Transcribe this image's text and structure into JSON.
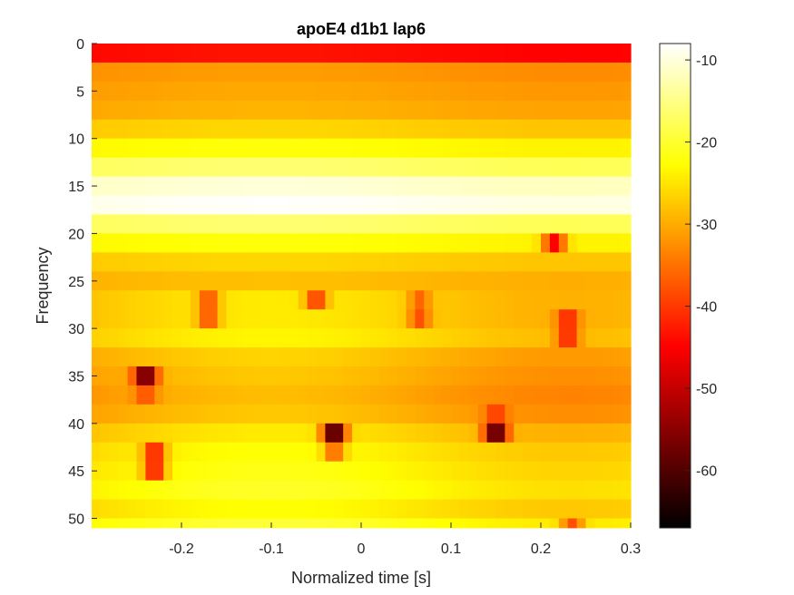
{
  "chart_data": {
    "type": "heatmap",
    "title": "apoE4 d1b1 lap6",
    "xlabel": "Normalized time [s]",
    "ylabel": "Frequency",
    "xlim": [
      -0.3,
      0.3
    ],
    "ylim": [
      0,
      51
    ],
    "y_reversed": true,
    "xticks": [
      -0.2,
      -0.1,
      0,
      0.1,
      0.2,
      0.3
    ],
    "xtick_labels": [
      "-0.2",
      "-0.1",
      "0",
      "0.1",
      "0.2",
      "0.3"
    ],
    "yticks": [
      0,
      5,
      10,
      15,
      20,
      25,
      30,
      35,
      40,
      45,
      50
    ],
    "ytick_labels": [
      "0",
      "5",
      "10",
      "15",
      "20",
      "25",
      "30",
      "35",
      "40",
      "45",
      "50"
    ],
    "colormap": "hot",
    "colorbar": {
      "range": [
        -67,
        -8
      ],
      "ticks": [
        -10,
        -20,
        -30,
        -40,
        -50,
        -60
      ],
      "tick_labels": [
        "-10",
        "-20",
        "-30",
        "-40",
        "-50",
        "-60"
      ]
    },
    "row_frequencies": [
      1,
      3,
      5,
      7,
      9,
      11,
      13,
      15,
      17,
      19,
      21,
      23,
      25,
      27,
      29,
      31,
      33,
      35,
      37,
      39,
      41,
      43,
      45,
      47,
      49,
      51
    ],
    "row_baseline_power": [
      -44,
      -32,
      -31,
      -30,
      -27,
      -23,
      -17,
      -11,
      -9,
      -17,
      -23,
      -27,
      -29,
      -27,
      -27,
      -26,
      -29,
      -30,
      -31,
      -30,
      -27,
      -25,
      -24,
      -23,
      -25,
      -22
    ],
    "dips": [
      {
        "f": 21,
        "t": 0.215,
        "power": -45
      },
      {
        "f": 27,
        "t": -0.17,
        "power": -38
      },
      {
        "f": 29,
        "t": -0.17,
        "power": -38
      },
      {
        "f": 27,
        "t": -0.05,
        "power": -40
      },
      {
        "f": 27,
        "t": 0.065,
        "power": -36
      },
      {
        "f": 29,
        "t": 0.065,
        "power": -38
      },
      {
        "f": 29,
        "t": 0.23,
        "power": -42
      },
      {
        "f": 31,
        "t": 0.23,
        "power": -42
      },
      {
        "f": 35,
        "t": -0.24,
        "power": -60
      },
      {
        "f": 37,
        "t": -0.24,
        "power": -38
      },
      {
        "f": 39,
        "t": 0.15,
        "power": -40
      },
      {
        "f": 41,
        "t": 0.15,
        "power": -62
      },
      {
        "f": 41,
        "t": -0.03,
        "power": -64
      },
      {
        "f": 43,
        "t": -0.23,
        "power": -43
      },
      {
        "f": 45,
        "t": -0.23,
        "power": -43
      },
      {
        "f": 43,
        "t": -0.03,
        "power": -36
      },
      {
        "f": 51,
        "t": 0.235,
        "power": -38
      }
    ]
  }
}
